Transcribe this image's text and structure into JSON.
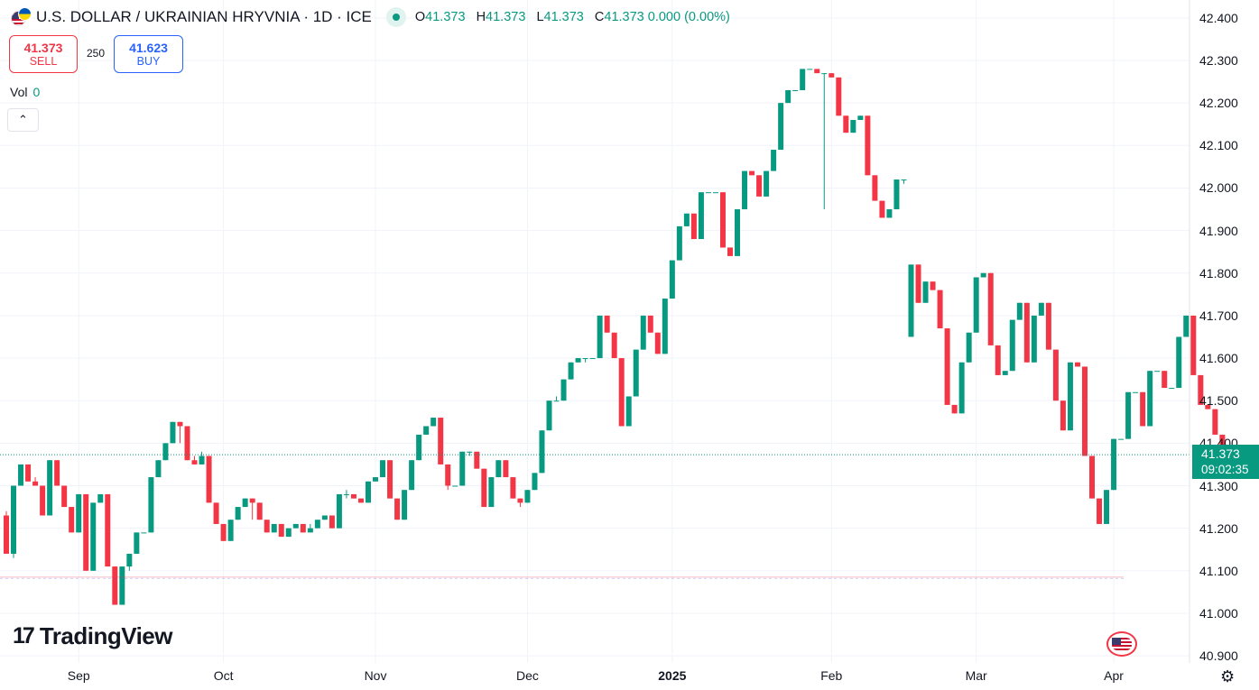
{
  "header": {
    "title": "U.S. DOLLAR / UKRAINIAN HRYVNIA · 1D · ICE",
    "o_label": "O",
    "o_value": "41.373",
    "h_label": "H",
    "h_value": "41.373",
    "l_label": "L",
    "l_value": "41.373",
    "c_label": "C",
    "c_value": "41.373 0.000 (0.00%)"
  },
  "trade": {
    "sell_price": "41.373",
    "sell_label": "SELL",
    "spread": "250",
    "buy_price": "41.623",
    "buy_label": "BUY"
  },
  "volume": {
    "label": "Vol",
    "value": "0"
  },
  "price_tag": {
    "price": "41.373",
    "countdown": "09:02:35"
  },
  "logo": {
    "mark": "17",
    "text": "TradingView"
  },
  "colors": {
    "up": "#089981",
    "down": "#f23645",
    "grid": "#f0f3fa",
    "text": "#131722",
    "accent": "#2962ff"
  },
  "chart_data": {
    "type": "candlestick",
    "title": "U.S. DOLLAR / UKRAINIAN HRYVNIA · 1D · ICE",
    "y_ticks": [
      "40.900",
      "41.000",
      "41.100",
      "41.200",
      "41.300",
      "41.400",
      "41.500",
      "41.600",
      "41.700",
      "41.800",
      "41.900",
      "42.000",
      "42.100",
      "42.200",
      "42.300",
      "42.400"
    ],
    "ylim": [
      40.88,
      42.41
    ],
    "x_ticks": [
      {
        "label": "Sep",
        "index": 10,
        "bold": false
      },
      {
        "label": "Oct",
        "index": 30,
        "bold": false
      },
      {
        "label": "Nov",
        "index": 51,
        "bold": false
      },
      {
        "label": "Dec",
        "index": 72,
        "bold": false
      },
      {
        "label": "2025",
        "index": 92,
        "bold": true
      },
      {
        "label": "Feb",
        "index": 114,
        "bold": false
      },
      {
        "label": "Mar",
        "index": 134,
        "bold": false
      },
      {
        "label": "Apr",
        "index": 153,
        "bold": false
      }
    ],
    "last_price": 41.373,
    "reference_line": 41.085,
    "candles": [
      [
        41.23,
        41.14,
        41.14,
        41.24
      ],
      [
        41.14,
        41.3,
        41.13,
        41.3
      ],
      [
        41.3,
        41.35,
        41.3,
        41.35
      ],
      [
        41.35,
        41.31,
        41.31,
        41.35
      ],
      [
        41.31,
        41.3,
        41.3,
        41.32
      ],
      [
        41.3,
        41.23,
        41.23,
        41.3
      ],
      [
        41.23,
        41.36,
        41.23,
        41.36
      ],
      [
        41.36,
        41.3,
        41.3,
        41.36
      ],
      [
        41.3,
        41.25,
        41.25,
        41.3
      ],
      [
        41.25,
        41.19,
        41.19,
        41.25
      ],
      [
        41.19,
        41.28,
        41.19,
        41.28
      ],
      [
        41.28,
        41.1,
        41.1,
        41.28
      ],
      [
        41.1,
        41.26,
        41.1,
        41.26
      ],
      [
        41.26,
        41.28,
        41.26,
        41.28
      ],
      [
        41.28,
        41.11,
        41.11,
        41.28
      ],
      [
        41.11,
        41.02,
        41.02,
        41.11
      ],
      [
        41.02,
        41.11,
        41.02,
        41.11
      ],
      [
        41.11,
        41.14,
        41.1,
        41.14
      ],
      [
        41.14,
        41.19,
        41.14,
        41.19
      ],
      [
        41.19,
        41.19,
        41.19,
        41.19
      ],
      [
        41.19,
        41.32,
        41.19,
        41.32
      ],
      [
        41.32,
        41.36,
        41.32,
        41.36
      ],
      [
        41.36,
        41.4,
        41.36,
        41.4
      ],
      [
        41.4,
        41.45,
        41.4,
        41.45
      ],
      [
        41.45,
        41.44,
        41.4,
        41.45
      ],
      [
        41.44,
        41.36,
        41.36,
        41.44
      ],
      [
        41.36,
        41.35,
        41.35,
        41.37
      ],
      [
        41.35,
        41.37,
        41.35,
        41.38
      ],
      [
        41.37,
        41.26,
        41.26,
        41.37
      ],
      [
        41.26,
        41.21,
        41.21,
        41.26
      ],
      [
        41.21,
        41.17,
        41.17,
        41.21
      ],
      [
        41.17,
        41.22,
        41.17,
        41.22
      ],
      [
        41.22,
        41.25,
        41.22,
        41.25
      ],
      [
        41.25,
        41.27,
        41.25,
        41.27
      ],
      [
        41.27,
        41.26,
        41.22,
        41.27
      ],
      [
        41.26,
        41.22,
        41.22,
        41.26
      ],
      [
        41.22,
        41.19,
        41.19,
        41.22
      ],
      [
        41.19,
        41.21,
        41.19,
        41.21
      ],
      [
        41.21,
        41.18,
        41.18,
        41.21
      ],
      [
        41.18,
        41.2,
        41.18,
        41.2
      ],
      [
        41.2,
        41.21,
        41.2,
        41.21
      ],
      [
        41.21,
        41.19,
        41.19,
        41.21
      ],
      [
        41.19,
        41.2,
        41.19,
        41.21
      ],
      [
        41.2,
        41.22,
        41.2,
        41.22
      ],
      [
        41.22,
        41.23,
        41.22,
        41.23
      ],
      [
        41.23,
        41.2,
        41.2,
        41.23
      ],
      [
        41.2,
        41.28,
        41.2,
        41.28
      ],
      [
        41.28,
        41.28,
        41.27,
        41.29
      ],
      [
        41.28,
        41.27,
        41.27,
        41.28
      ],
      [
        41.27,
        41.26,
        41.26,
        41.27
      ],
      [
        41.26,
        41.31,
        41.26,
        41.31
      ],
      [
        41.31,
        41.32,
        41.31,
        41.32
      ],
      [
        41.32,
        41.36,
        41.32,
        41.36
      ],
      [
        41.36,
        41.27,
        41.27,
        41.36
      ],
      [
        41.27,
        41.22,
        41.22,
        41.27
      ],
      [
        41.22,
        41.29,
        41.22,
        41.29
      ],
      [
        41.29,
        41.36,
        41.29,
        41.36
      ],
      [
        41.36,
        41.42,
        41.36,
        41.42
      ],
      [
        41.42,
        41.44,
        41.42,
        41.44
      ],
      [
        41.44,
        41.46,
        41.44,
        41.46
      ],
      [
        41.46,
        41.35,
        41.35,
        41.46
      ],
      [
        41.35,
        41.3,
        41.29,
        41.35
      ],
      [
        41.3,
        41.3,
        41.3,
        41.3
      ],
      [
        41.3,
        41.38,
        41.3,
        41.38
      ],
      [
        41.38,
        41.38,
        41.37,
        41.38
      ],
      [
        41.38,
        41.34,
        41.34,
        41.38
      ],
      [
        41.34,
        41.25,
        41.25,
        41.34
      ],
      [
        41.25,
        41.32,
        41.25,
        41.32
      ],
      [
        41.32,
        41.36,
        41.32,
        41.36
      ],
      [
        41.36,
        41.32,
        41.32,
        41.36
      ],
      [
        41.32,
        41.27,
        41.27,
        41.32
      ],
      [
        41.27,
        41.26,
        41.25,
        41.27
      ],
      [
        41.26,
        41.29,
        41.26,
        41.29
      ],
      [
        41.29,
        41.33,
        41.29,
        41.33
      ],
      [
        41.33,
        41.43,
        41.33,
        41.43
      ],
      [
        41.43,
        41.5,
        41.43,
        41.5
      ],
      [
        41.5,
        41.5,
        41.5,
        41.51
      ],
      [
        41.5,
        41.55,
        41.5,
        41.55
      ],
      [
        41.55,
        41.59,
        41.55,
        41.59
      ],
      [
        41.59,
        41.6,
        41.59,
        41.6
      ],
      [
        41.6,
        41.6,
        41.59,
        41.6
      ],
      [
        41.6,
        41.6,
        41.6,
        41.6
      ],
      [
        41.6,
        41.7,
        41.6,
        41.7
      ],
      [
        41.7,
        41.66,
        41.66,
        41.7
      ],
      [
        41.66,
        41.6,
        41.6,
        41.66
      ],
      [
        41.6,
        41.44,
        41.44,
        41.6
      ],
      [
        41.44,
        41.51,
        41.44,
        41.51
      ],
      [
        41.51,
        41.62,
        41.51,
        41.62
      ],
      [
        41.62,
        41.7,
        41.62,
        41.7
      ],
      [
        41.7,
        41.66,
        41.66,
        41.7
      ],
      [
        41.66,
        41.61,
        41.61,
        41.66
      ],
      [
        41.61,
        41.74,
        41.61,
        41.74
      ],
      [
        41.74,
        41.83,
        41.74,
        41.83
      ],
      [
        41.83,
        41.91,
        41.83,
        41.91
      ],
      [
        41.91,
        41.94,
        41.91,
        41.94
      ],
      [
        41.94,
        41.88,
        41.88,
        41.94
      ],
      [
        41.88,
        41.99,
        41.88,
        41.99
      ],
      [
        41.99,
        41.99,
        41.99,
        41.99
      ],
      [
        41.99,
        41.99,
        41.99,
        41.99
      ],
      [
        41.99,
        41.86,
        41.86,
        41.99
      ],
      [
        41.86,
        41.84,
        41.84,
        41.86
      ],
      [
        41.84,
        41.95,
        41.84,
        41.95
      ],
      [
        41.95,
        42.04,
        41.95,
        42.04
      ],
      [
        42.04,
        42.03,
        42.03,
        42.04
      ],
      [
        42.03,
        41.98,
        41.98,
        42.03
      ],
      [
        41.98,
        42.04,
        41.98,
        42.04
      ],
      [
        42.04,
        42.09,
        42.04,
        42.09
      ],
      [
        42.09,
        42.2,
        42.09,
        42.2
      ],
      [
        42.2,
        42.23,
        42.2,
        42.23
      ],
      [
        42.23,
        42.23,
        42.23,
        42.23
      ],
      [
        42.23,
        42.28,
        42.23,
        42.28
      ],
      [
        42.28,
        42.28,
        42.28,
        42.28
      ],
      [
        42.28,
        42.27,
        42.27,
        42.28
      ],
      [
        42.27,
        42.27,
        41.95,
        42.27
      ],
      [
        42.27,
        42.26,
        42.26,
        42.27
      ],
      [
        42.26,
        42.17,
        42.17,
        42.26
      ],
      [
        42.17,
        42.13,
        42.13,
        42.17
      ],
      [
        42.13,
        42.16,
        42.13,
        42.16
      ],
      [
        42.16,
        42.17,
        42.16,
        42.17
      ],
      [
        42.17,
        42.03,
        42.03,
        42.17
      ],
      [
        42.03,
        41.97,
        41.97,
        42.03
      ],
      [
        41.97,
        41.93,
        41.93,
        41.97
      ],
      [
        41.93,
        41.95,
        41.93,
        41.95
      ],
      [
        41.95,
        42.02,
        41.95,
        42.02
      ],
      [
        42.02,
        42.02,
        42.01,
        42.02
      ],
      [
        41.65,
        41.82,
        41.65,
        41.82
      ],
      [
        41.82,
        41.73,
        41.73,
        41.82
      ],
      [
        41.73,
        41.78,
        41.73,
        41.78
      ],
      [
        41.78,
        41.76,
        41.76,
        41.78
      ],
      [
        41.76,
        41.67,
        41.67,
        41.76
      ],
      [
        41.67,
        41.49,
        41.49,
        41.67
      ],
      [
        41.49,
        41.47,
        41.47,
        41.49
      ],
      [
        41.47,
        41.59,
        41.47,
        41.59
      ],
      [
        41.59,
        41.66,
        41.59,
        41.66
      ],
      [
        41.66,
        41.79,
        41.66,
        41.79
      ],
      [
        41.79,
        41.8,
        41.79,
        41.8
      ],
      [
        41.8,
        41.63,
        41.63,
        41.8
      ],
      [
        41.63,
        41.56,
        41.56,
        41.63
      ],
      [
        41.56,
        41.57,
        41.56,
        41.57
      ],
      [
        41.57,
        41.69,
        41.57,
        41.69
      ],
      [
        41.69,
        41.73,
        41.69,
        41.73
      ],
      [
        41.73,
        41.59,
        41.59,
        41.73
      ],
      [
        41.59,
        41.7,
        41.59,
        41.7
      ],
      [
        41.7,
        41.73,
        41.7,
        41.73
      ],
      [
        41.73,
        41.62,
        41.62,
        41.73
      ],
      [
        41.62,
        41.5,
        41.5,
        41.62
      ],
      [
        41.5,
        41.43,
        41.43,
        41.5
      ],
      [
        41.43,
        41.59,
        41.43,
        41.59
      ],
      [
        41.59,
        41.58,
        41.58,
        41.59
      ],
      [
        41.58,
        41.37,
        41.37,
        41.58
      ],
      [
        41.37,
        41.27,
        41.27,
        41.37
      ],
      [
        41.27,
        41.21,
        41.21,
        41.27
      ],
      [
        41.21,
        41.29,
        41.21,
        41.29
      ],
      [
        41.29,
        41.41,
        41.29,
        41.41
      ],
      [
        41.41,
        41.41,
        41.41,
        41.41
      ],
      [
        41.41,
        41.52,
        41.41,
        41.52
      ],
      [
        41.52,
        41.52,
        41.52,
        41.52
      ],
      [
        41.52,
        41.44,
        41.44,
        41.52
      ],
      [
        41.44,
        41.57,
        41.44,
        41.57
      ],
      [
        41.57,
        41.57,
        41.57,
        41.57
      ],
      [
        41.57,
        41.53,
        41.53,
        41.57
      ],
      [
        41.53,
        41.53,
        41.53,
        41.53
      ],
      [
        41.53,
        41.65,
        41.53,
        41.65
      ],
      [
        41.65,
        41.7,
        41.65,
        41.7
      ],
      [
        41.7,
        41.56,
        41.56,
        41.7
      ],
      [
        41.56,
        41.49,
        41.49,
        41.56
      ],
      [
        41.49,
        41.48,
        41.48,
        41.49
      ],
      [
        41.48,
        41.42,
        41.42,
        41.48
      ],
      [
        41.42,
        41.373,
        41.373,
        41.42
      ],
      [
        41.373,
        41.373,
        41.373,
        41.373
      ]
    ]
  }
}
